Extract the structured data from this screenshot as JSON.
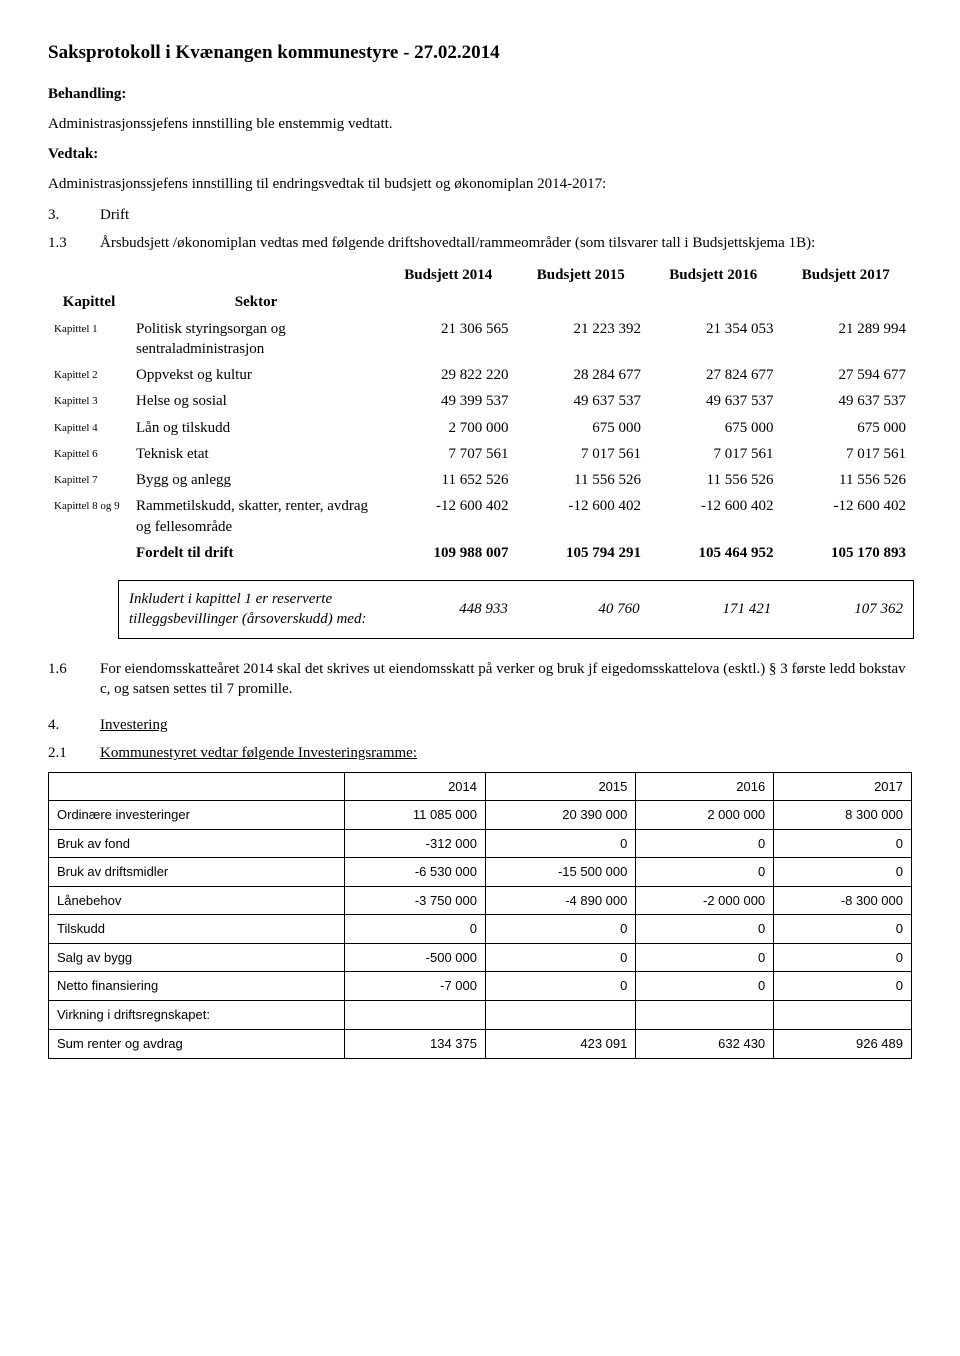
{
  "title": "Saksprotokoll i Kvænangen kommunestyre - 27.02.2014",
  "behandling_hdr": "Behandling:",
  "behandling_txt": "Administrasjonssjefens innstilling ble enstemmig vedtatt.",
  "vedtak_hdr": "Vedtak:",
  "vedtak_txt": "Administrasjonssjefens innstilling til endringsvedtak til budsjett og økonomiplan 2014-2017:",
  "s3_num": "3.",
  "s3_txt": "Drift",
  "s13_num": "1.3",
  "s13_txt": "Årsbudsjett /økonomiplan vedtas med følgende driftshovedtall/rammeområder (som tilsvarer tall i Budsjettskjema 1B):",
  "budget": {
    "col_kapittel": "Kapittel",
    "col_sektor": "Sektor",
    "years": [
      "Budsjett 2014",
      "Budsjett 2015",
      "Budsjett 2016",
      "Budsjett 2017"
    ],
    "rows": [
      {
        "kap": "Kapittel 1",
        "sek": "Politisk styringsorgan og sentraladministrasjon",
        "v": [
          "21 306 565",
          "21 223 392",
          "21 354 053",
          "21 289 994"
        ]
      },
      {
        "kap": "Kapittel 2",
        "sek": "Oppvekst og kultur",
        "v": [
          "29 822 220",
          "28 284 677",
          "27 824 677",
          "27 594 677"
        ]
      },
      {
        "kap": "Kapittel 3",
        "sek": "Helse og sosial",
        "v": [
          "49 399 537",
          "49 637 537",
          "49 637 537",
          "49 637 537"
        ]
      },
      {
        "kap": "Kapittel 4",
        "sek": "Lån og tilskudd",
        "v": [
          "2 700 000",
          "675 000",
          "675 000",
          "675 000"
        ]
      },
      {
        "kap": "Kapittel 6",
        "sek": "Teknisk etat",
        "v": [
          "7 707 561",
          "7 017 561",
          "7 017 561",
          "7 017 561"
        ]
      },
      {
        "kap": "Kapittel 7",
        "sek": "Bygg og anlegg",
        "v": [
          "11 652 526",
          "11 556 526",
          "11 556 526",
          "11 556 526"
        ]
      },
      {
        "kap": "Kapittel 8 og 9",
        "sek": "Rammetilskudd, skatter, renter, avdrag og fellesområde",
        "v": [
          "-12 600 402",
          "-12 600 402",
          "-12 600 402",
          "-12 600 402"
        ]
      },
      {
        "kap": "",
        "sek": "Fordelt til drift",
        "v": [
          "109 988 007",
          "105 794 291",
          "105 464 952",
          "105 170 893"
        ],
        "bold": true
      }
    ]
  },
  "inkludert": {
    "label": "Inkludert i kapittel 1 er reserverte tilleggsbevillinger (årsoverskudd) med:",
    "v": [
      "448 933",
      "40 760",
      "171 421",
      "107 362"
    ]
  },
  "s16_num": "1.6",
  "s16_txt": "For eiendomsskatteåret 2014 skal det skrives ut eiendomsskatt på verker og bruk jf eigedomsskattelova (esktl.) § 3 første ledd bokstav c, og satsen settes til 7 promille.",
  "s4_num": "4.",
  "s4_txt": "Investering",
  "s21_num": "2.1",
  "s21_txt": "Kommunestyret vedtar følgende Investeringsramme:",
  "invest": {
    "years": [
      "2014",
      "2015",
      "2016",
      "2017"
    ],
    "rows": [
      {
        "label": "Ordinære investeringer",
        "v": [
          "11 085 000",
          "20 390 000",
          "2 000 000",
          "8 300 000"
        ]
      },
      {
        "label": "Bruk av fond",
        "v": [
          "-312 000",
          "0",
          "0",
          "0"
        ]
      },
      {
        "label": "Bruk av driftsmidler",
        "v": [
          "-6 530 000",
          "-15 500 000",
          "0",
          "0"
        ]
      },
      {
        "label": "Lånebehov",
        "v": [
          "-3 750 000",
          "-4 890 000",
          "-2 000 000",
          "-8 300 000"
        ]
      },
      {
        "label": "Tilskudd",
        "v": [
          "0",
          "0",
          "0",
          "0"
        ]
      },
      {
        "label": "Salg av bygg",
        "v": [
          "-500 000",
          "0",
          "0",
          "0"
        ]
      },
      {
        "label": "Netto finansiering",
        "v": [
          "-7 000",
          "0",
          "0",
          "0"
        ]
      },
      {
        "label": "Virkning i driftsregnskapet:",
        "v": [
          "",
          "",
          "",
          ""
        ]
      },
      {
        "label": "Sum renter og avdrag",
        "v": [
          "134 375",
          "423 091",
          "632 430",
          "926 489"
        ]
      }
    ]
  }
}
